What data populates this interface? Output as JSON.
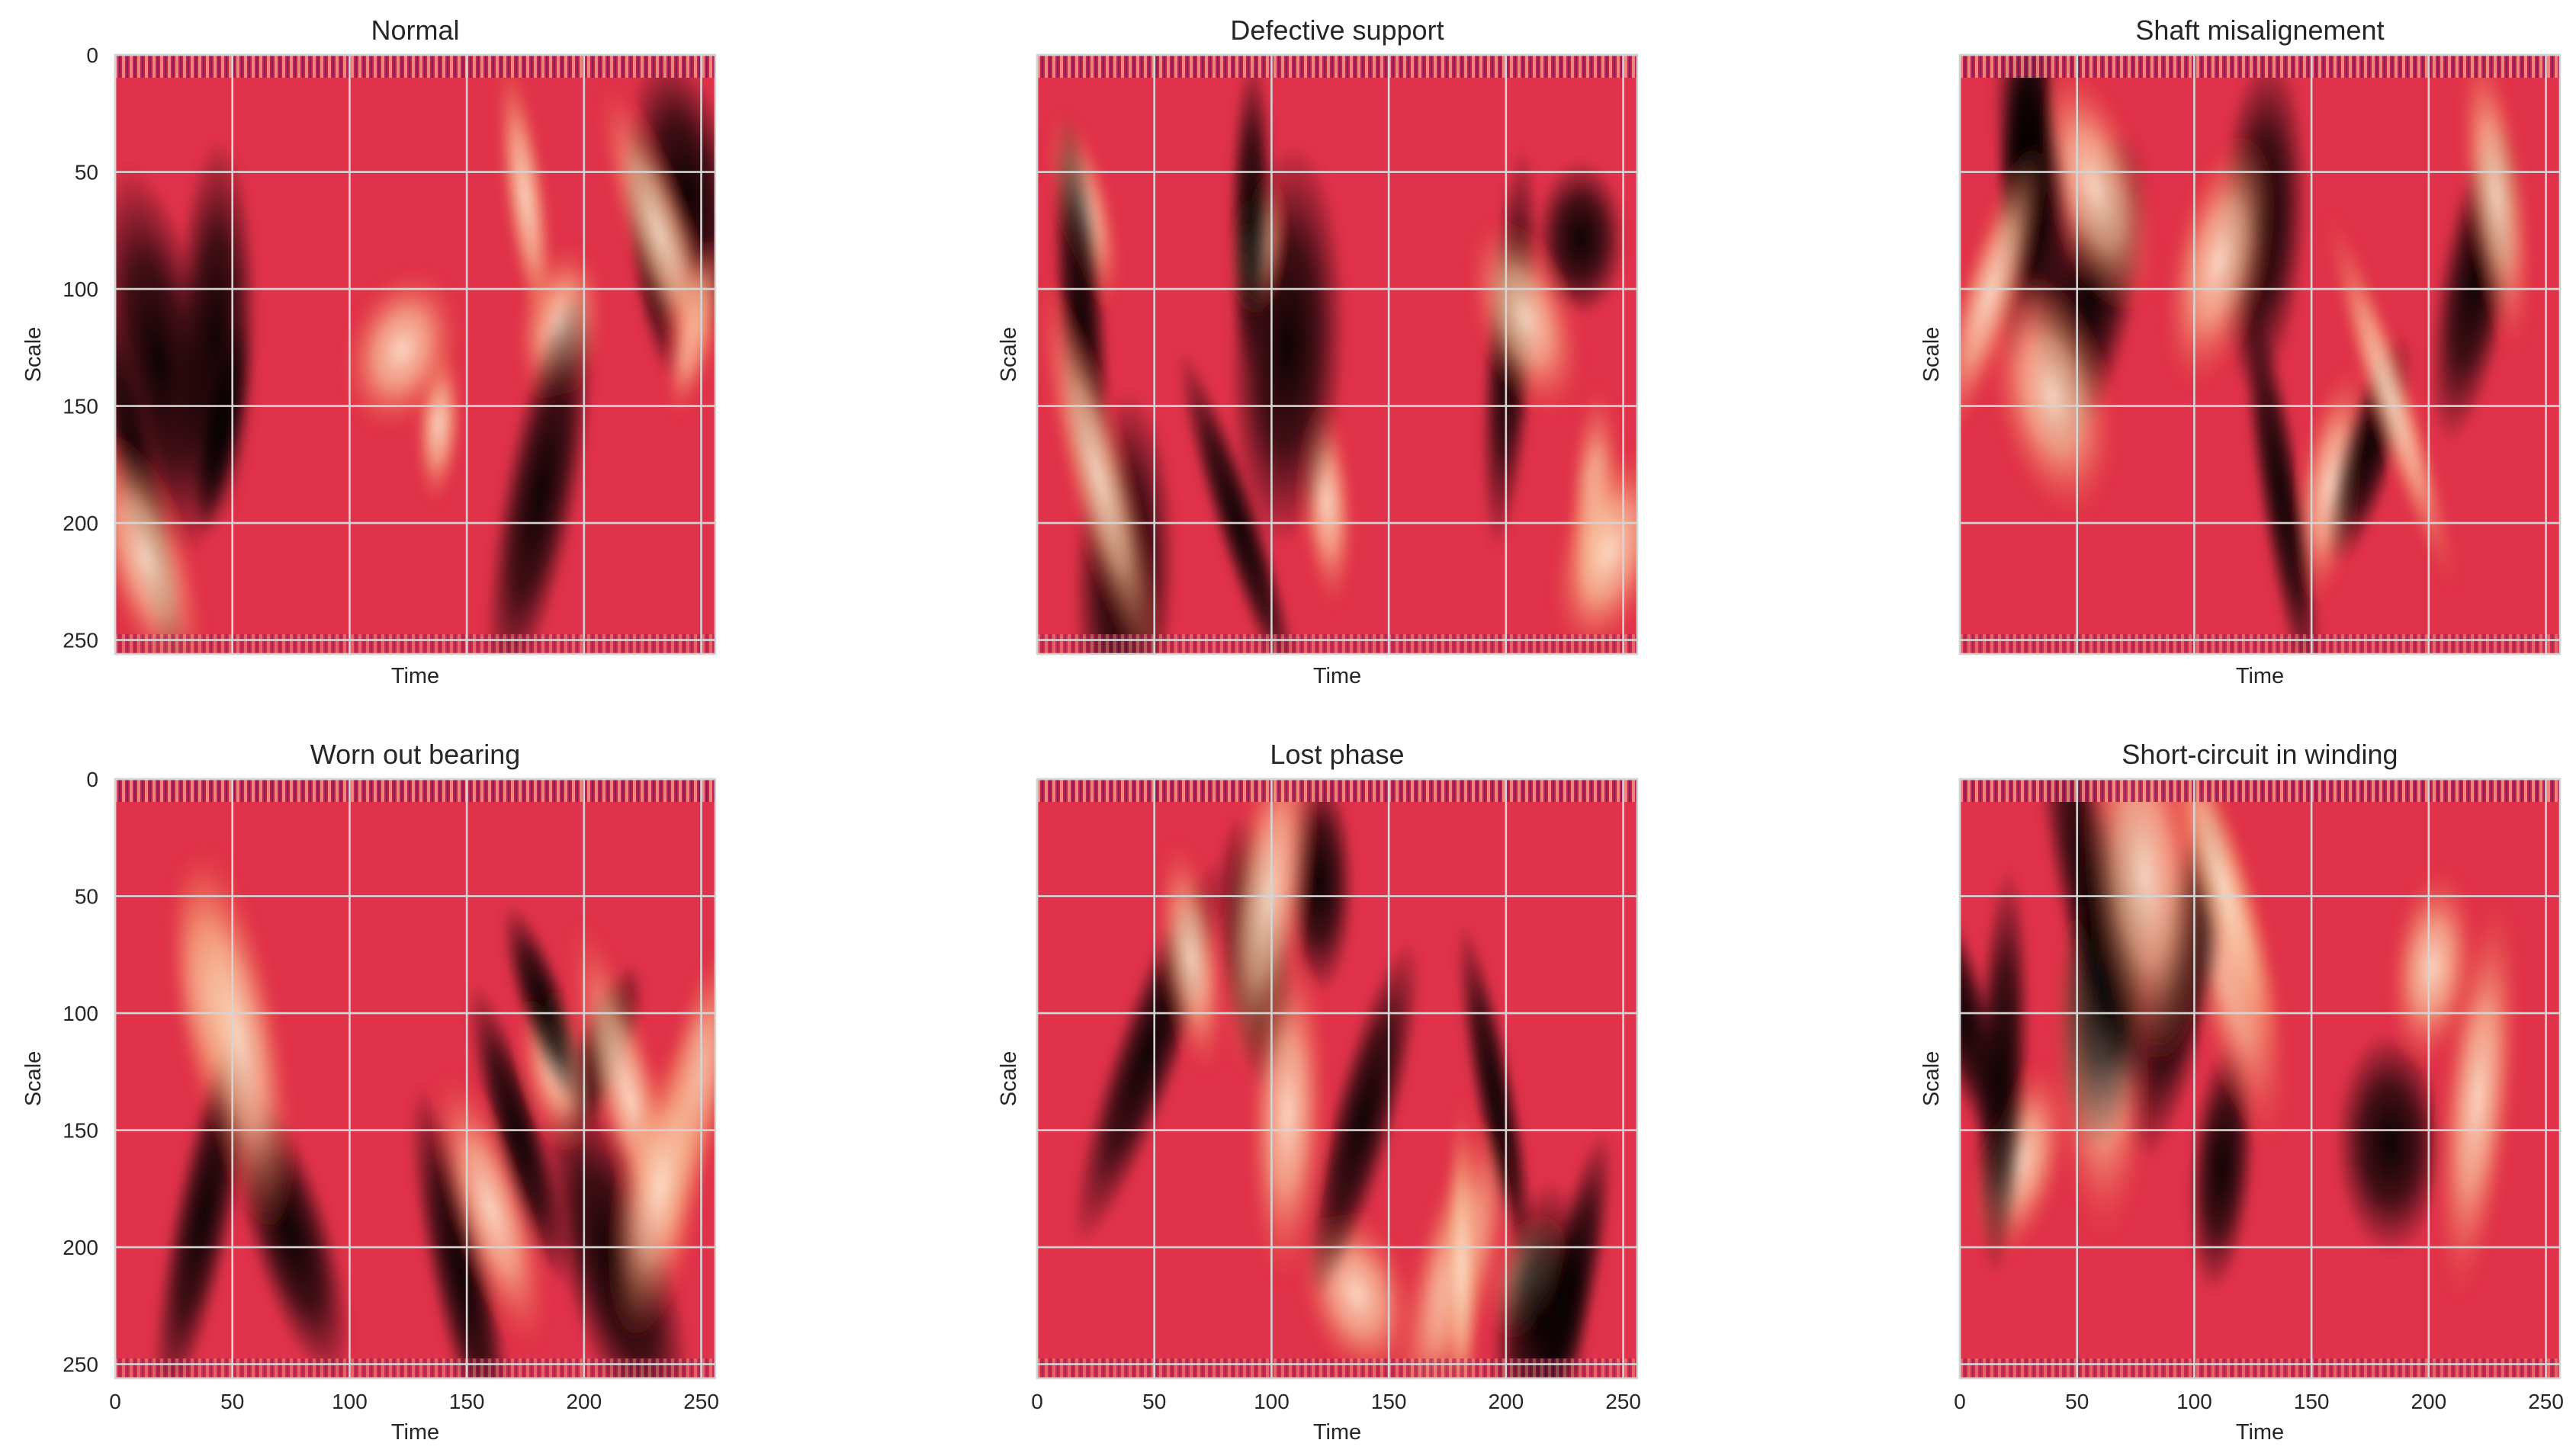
{
  "chart_data": [
    {
      "type": "heatmap",
      "title": "Normal",
      "xlabel": "Time",
      "ylabel": "Scale",
      "xlim": [
        0,
        256
      ],
      "ylim": [
        256,
        0
      ],
      "xticks": [
        0,
        50,
        100,
        150,
        200,
        250
      ],
      "yticks": [
        0,
        50,
        100,
        150,
        200,
        250
      ],
      "show_xticklabels": false,
      "show_yticklabels": true,
      "colormap": "rocket"
    },
    {
      "type": "heatmap",
      "title": "Defective support",
      "xlabel": "Time",
      "ylabel": "Scale",
      "xlim": [
        0,
        256
      ],
      "ylim": [
        256,
        0
      ],
      "xticks": [
        0,
        50,
        100,
        150,
        200,
        250
      ],
      "yticks": [
        0,
        50,
        100,
        150,
        200,
        250
      ],
      "show_xticklabels": false,
      "show_yticklabels": false,
      "colormap": "rocket"
    },
    {
      "type": "heatmap",
      "title": "Shaft misalignement",
      "xlabel": "Time",
      "ylabel": "Scale",
      "xlim": [
        0,
        256
      ],
      "ylim": [
        256,
        0
      ],
      "xticks": [
        0,
        50,
        100,
        150,
        200,
        250
      ],
      "yticks": [
        0,
        50,
        100,
        150,
        200,
        250
      ],
      "show_xticklabels": false,
      "show_yticklabels": false,
      "colormap": "rocket"
    },
    {
      "type": "heatmap",
      "title": "Worn out bearing",
      "xlabel": "Time",
      "ylabel": "Scale",
      "xlim": [
        0,
        256
      ],
      "ylim": [
        256,
        0
      ],
      "xticks": [
        0,
        50,
        100,
        150,
        200,
        250
      ],
      "yticks": [
        0,
        50,
        100,
        150,
        200,
        250
      ],
      "show_xticklabels": true,
      "show_yticklabels": true,
      "colormap": "rocket"
    },
    {
      "type": "heatmap",
      "title": "Lost phase",
      "xlabel": "Time",
      "ylabel": "Scale",
      "xlim": [
        0,
        256
      ],
      "ylim": [
        256,
        0
      ],
      "xticks": [
        0,
        50,
        100,
        150,
        200,
        250
      ],
      "yticks": [
        0,
        50,
        100,
        150,
        200,
        250
      ],
      "show_xticklabels": true,
      "show_yticklabels": false,
      "colormap": "rocket"
    },
    {
      "type": "heatmap",
      "title": "Short-circuit in winding",
      "xlabel": "Time",
      "ylabel": "Scale",
      "xlim": [
        0,
        256
      ],
      "ylim": [
        256,
        0
      ],
      "xticks": [
        0,
        50,
        100,
        150,
        200,
        250
      ],
      "yticks": [
        0,
        50,
        100,
        150,
        200,
        250
      ],
      "show_xticklabels": true,
      "show_yticklabels": false,
      "colormap": "rocket"
    }
  ],
  "colors": {
    "gradient_stops": [
      "#2a1434",
      "#5b1e51",
      "#8e1e5a",
      "#c21d55",
      "#e13342",
      "#ee5a3c",
      "#f48a57",
      "#f6b48e",
      "#fbe0cb"
    ],
    "background": "#e0324a",
    "grid": "#d4d4d4",
    "text": "#262626"
  }
}
